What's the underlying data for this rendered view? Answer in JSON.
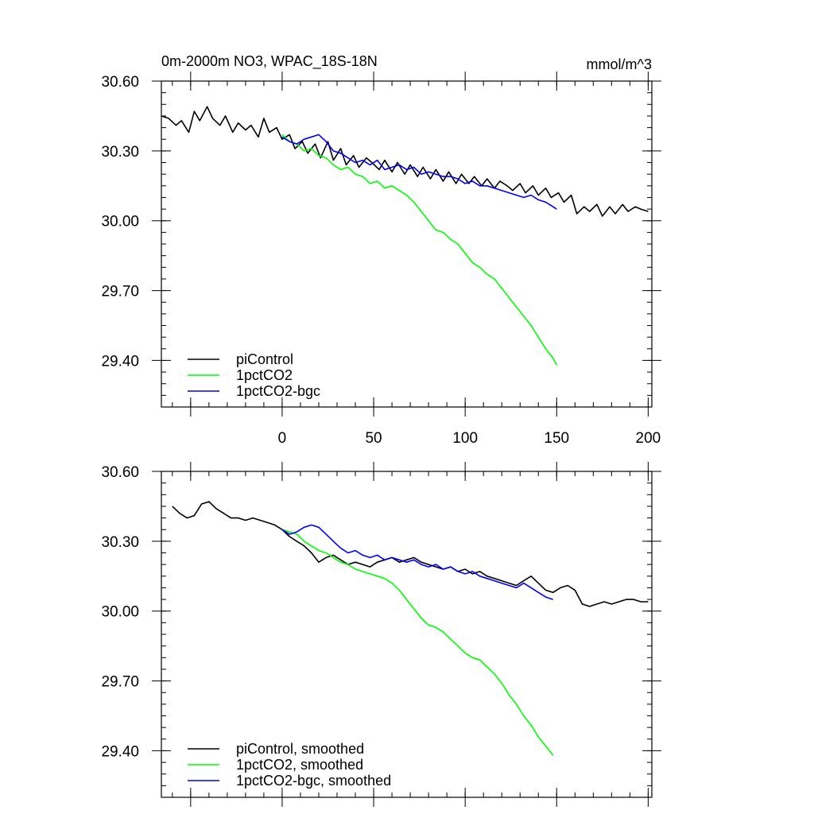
{
  "chart_data": [
    {
      "type": "line",
      "title": "0m-2000m NO3, WPAC_18S-18N",
      "units": "mmol/m^3",
      "xlim": [
        -66,
        202
      ],
      "ylim": [
        29.2,
        30.6
      ],
      "yticks": [
        "30.60",
        "30.30",
        "30.00",
        "29.70",
        "29.40"
      ],
      "xticks": [
        "0",
        "50",
        "100",
        "150",
        "200"
      ],
      "legend_position": "bottom-left",
      "series": [
        {
          "name": "piControl",
          "color": "#000000",
          "x": [
            -66,
            -62,
            -58,
            -55,
            -51,
            -48,
            -45,
            -41,
            -38,
            -34,
            -31,
            -27,
            -24,
            -20,
            -17,
            -13,
            -10,
            -7,
            -3,
            0,
            4,
            7,
            11,
            14,
            18,
            21,
            25,
            28,
            32,
            35,
            39,
            42,
            46,
            49,
            53,
            56,
            60,
            63,
            67,
            70,
            74,
            77,
            81,
            84,
            88,
            91,
            95,
            98,
            102,
            105,
            109,
            112,
            116,
            119,
            123,
            126,
            130,
            133,
            137,
            140,
            144,
            147,
            151,
            154,
            158,
            161,
            165,
            168,
            172,
            175,
            179,
            182,
            186,
            189,
            193,
            196,
            200
          ],
          "y": [
            30.45,
            30.44,
            30.41,
            30.43,
            30.38,
            30.47,
            30.43,
            30.49,
            30.44,
            30.41,
            30.45,
            30.38,
            30.42,
            30.39,
            30.41,
            30.36,
            30.44,
            30.38,
            30.4,
            30.35,
            30.37,
            30.31,
            30.34,
            30.29,
            30.33,
            30.27,
            30.34,
            30.26,
            30.31,
            30.24,
            30.28,
            30.23,
            30.27,
            30.25,
            30.22,
            30.26,
            30.21,
            30.25,
            30.2,
            30.24,
            30.19,
            30.23,
            30.18,
            30.22,
            30.17,
            30.21,
            30.16,
            30.2,
            30.16,
            30.19,
            30.15,
            30.18,
            30.14,
            30.17,
            30.15,
            30.13,
            30.16,
            30.12,
            30.15,
            30.11,
            30.14,
            30.1,
            30.12,
            30.08,
            30.11,
            30.03,
            30.06,
            30.04,
            30.07,
            30.02,
            30.06,
            30.03,
            30.07,
            30.04,
            30.06,
            30.05,
            30.04
          ]
        },
        {
          "name": "1pctCO2",
          "color": "#00ff00",
          "x": [
            0,
            4,
            8,
            12,
            16,
            20,
            24,
            28,
            32,
            36,
            40,
            44,
            48,
            52,
            56,
            60,
            64,
            68,
            72,
            76,
            80,
            84,
            88,
            92,
            96,
            100,
            104,
            108,
            112,
            116,
            120,
            124,
            128,
            132,
            136,
            140,
            144,
            148,
            150
          ],
          "y": [
            30.37,
            30.34,
            30.33,
            30.3,
            30.31,
            30.28,
            30.27,
            30.24,
            30.22,
            30.23,
            30.2,
            30.19,
            30.16,
            30.17,
            30.14,
            30.15,
            30.13,
            30.11,
            30.08,
            30.04,
            30.0,
            29.96,
            29.95,
            29.92,
            29.9,
            29.86,
            29.82,
            29.8,
            29.77,
            29.75,
            29.71,
            29.67,
            29.63,
            29.59,
            29.55,
            29.5,
            29.45,
            29.41,
            29.38
          ]
        },
        {
          "name": "1pctCO2-bgc",
          "color": "#0000ff",
          "x": [
            0,
            4,
            8,
            12,
            16,
            20,
            24,
            28,
            32,
            36,
            40,
            44,
            48,
            52,
            56,
            60,
            64,
            68,
            72,
            76,
            80,
            84,
            88,
            92,
            96,
            100,
            104,
            108,
            112,
            116,
            120,
            124,
            128,
            132,
            136,
            140,
            144,
            148,
            150
          ],
          "y": [
            30.36,
            30.34,
            30.33,
            30.35,
            30.36,
            30.37,
            30.34,
            30.3,
            30.29,
            30.27,
            30.25,
            30.26,
            30.24,
            30.26,
            30.22,
            30.23,
            30.24,
            30.22,
            30.23,
            30.2,
            30.21,
            30.2,
            30.19,
            30.19,
            30.18,
            30.16,
            30.17,
            30.15,
            30.15,
            30.14,
            30.13,
            30.12,
            30.11,
            30.1,
            30.11,
            30.09,
            30.08,
            30.06,
            30.05
          ]
        }
      ]
    },
    {
      "type": "line",
      "title": "",
      "units": "",
      "xlim": [
        -66,
        202
      ],
      "ylim": [
        29.2,
        30.6
      ],
      "yticks": [
        "30.60",
        "30.30",
        "30.00",
        "29.70",
        "29.40"
      ],
      "xticks": [],
      "legend_position": "bottom-left",
      "series": [
        {
          "name": "piControl, smoothed",
          "color": "#000000",
          "x": [
            -60,
            -56,
            -52,
            -48,
            -44,
            -40,
            -36,
            -32,
            -28,
            -24,
            -20,
            -16,
            -12,
            -8,
            -4,
            0,
            4,
            8,
            12,
            16,
            20,
            24,
            28,
            32,
            36,
            40,
            44,
            48,
            52,
            56,
            60,
            64,
            68,
            72,
            76,
            80,
            84,
            88,
            92,
            96,
            100,
            104,
            108,
            112,
            116,
            120,
            124,
            128,
            132,
            136,
            140,
            144,
            148,
            152,
            156,
            160,
            164,
            168,
            172,
            176,
            180,
            184,
            188,
            192,
            196,
            200
          ],
          "y": [
            30.45,
            30.42,
            30.4,
            30.41,
            30.46,
            30.47,
            30.44,
            30.42,
            30.4,
            30.4,
            30.39,
            30.4,
            30.39,
            30.38,
            30.37,
            30.35,
            30.32,
            30.3,
            30.28,
            30.25,
            30.21,
            30.23,
            30.24,
            30.22,
            30.2,
            30.21,
            30.2,
            30.19,
            30.21,
            30.22,
            30.23,
            30.21,
            30.22,
            30.23,
            30.21,
            30.2,
            30.19,
            30.18,
            30.19,
            30.17,
            30.18,
            30.16,
            30.17,
            30.15,
            30.14,
            30.13,
            30.12,
            30.11,
            30.13,
            30.15,
            30.12,
            30.09,
            30.08,
            30.1,
            30.11,
            30.09,
            30.03,
            30.02,
            30.03,
            30.04,
            30.03,
            30.04,
            30.05,
            30.05,
            30.04,
            30.04
          ]
        },
        {
          "name": "1pctCO2, smoothed",
          "color": "#00ff00",
          "x": [
            0,
            4,
            8,
            12,
            16,
            20,
            24,
            28,
            32,
            36,
            40,
            44,
            48,
            52,
            56,
            60,
            64,
            68,
            72,
            76,
            80,
            84,
            88,
            92,
            96,
            100,
            104,
            108,
            112,
            116,
            120,
            124,
            128,
            132,
            136,
            140,
            144,
            148
          ],
          "y": [
            30.35,
            30.34,
            30.33,
            30.3,
            30.28,
            30.26,
            30.25,
            30.23,
            30.21,
            30.2,
            30.18,
            30.17,
            30.16,
            30.15,
            30.14,
            30.12,
            30.09,
            30.05,
            30.01,
            29.97,
            29.94,
            29.93,
            29.91,
            29.88,
            29.85,
            29.82,
            29.8,
            29.79,
            29.76,
            29.73,
            29.69,
            29.64,
            29.6,
            29.55,
            29.51,
            29.46,
            29.42,
            29.38
          ]
        },
        {
          "name": "1pctCO2-bgc, smoothed",
          "color": "#0000ff",
          "x": [
            0,
            4,
            8,
            12,
            16,
            20,
            24,
            28,
            32,
            36,
            40,
            44,
            48,
            52,
            56,
            60,
            64,
            68,
            72,
            76,
            80,
            84,
            88,
            92,
            96,
            100,
            104,
            108,
            112,
            116,
            120,
            124,
            128,
            132,
            136,
            140,
            144,
            148
          ],
          "y": [
            30.35,
            30.33,
            30.34,
            30.36,
            30.37,
            30.36,
            30.33,
            30.3,
            30.27,
            30.25,
            30.26,
            30.24,
            30.23,
            30.24,
            30.22,
            30.23,
            30.22,
            30.21,
            30.22,
            30.2,
            30.19,
            30.2,
            30.18,
            30.19,
            30.17,
            30.16,
            30.17,
            30.15,
            30.14,
            30.13,
            30.12,
            30.11,
            30.1,
            30.12,
            30.1,
            30.08,
            30.06,
            30.05
          ]
        }
      ]
    }
  ]
}
